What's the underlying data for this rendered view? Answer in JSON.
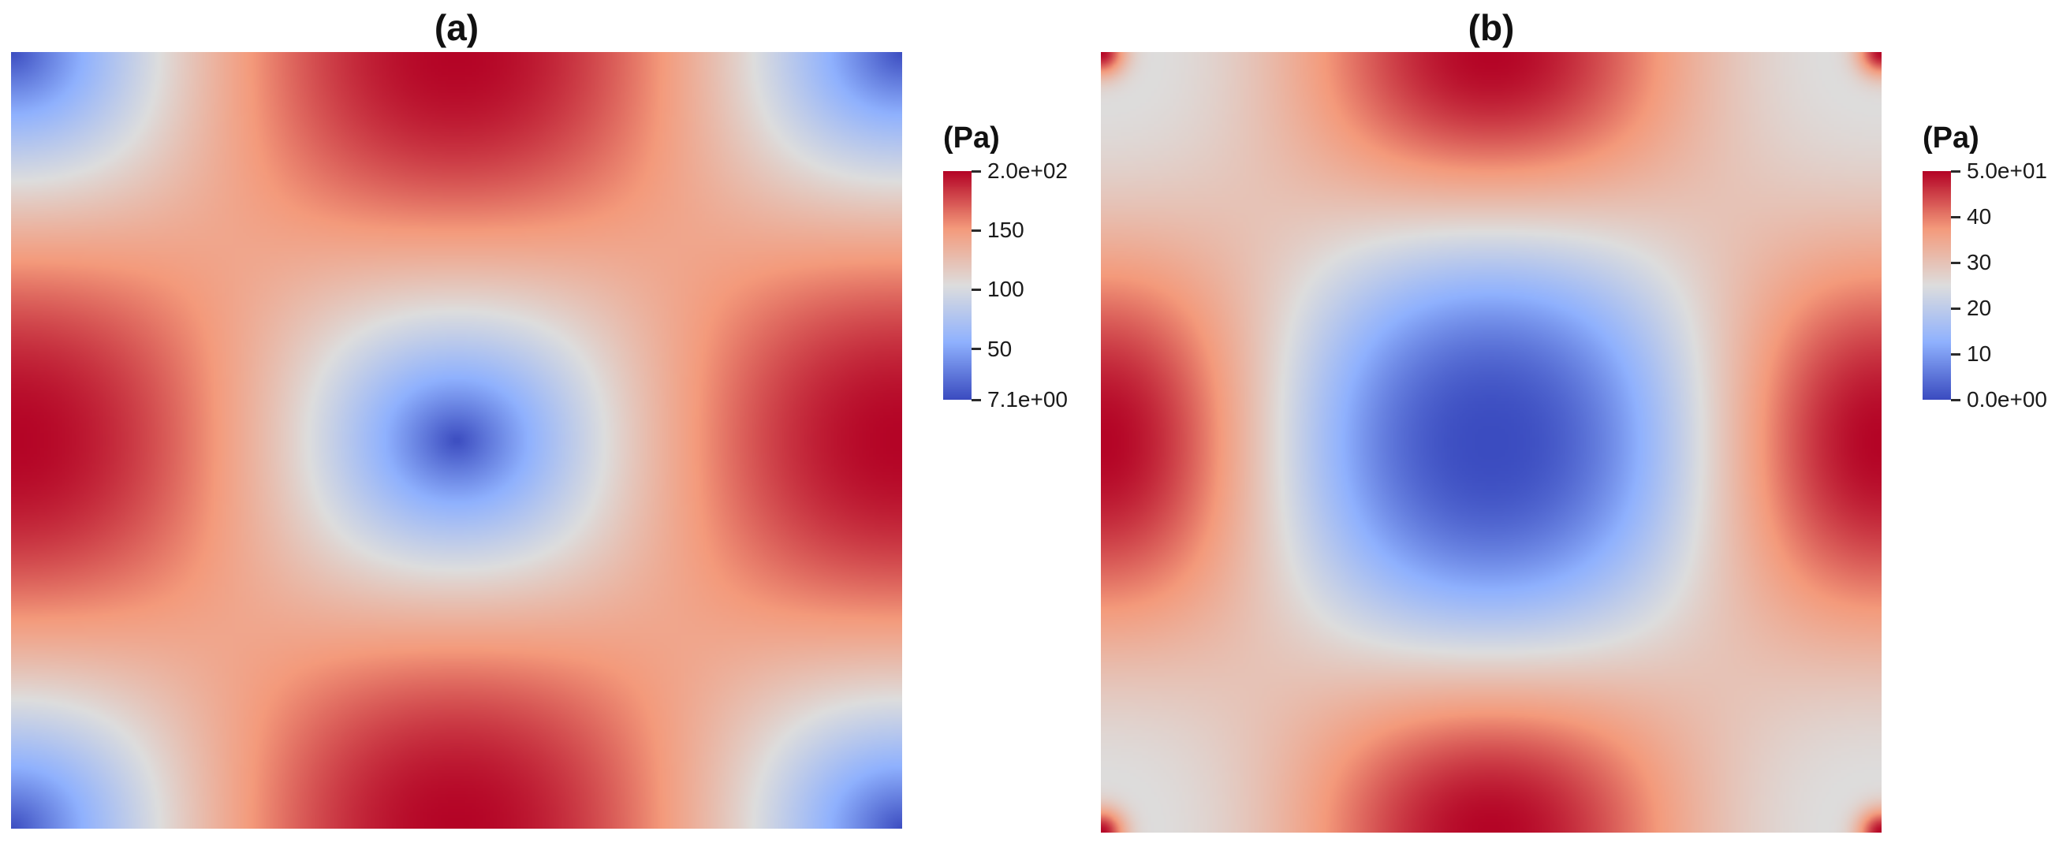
{
  "figure": {
    "background": "#ffffff"
  },
  "colormap": {
    "name": "cool-to-warm",
    "stops": [
      {
        "t": 0,
        "color": "#3b4cc0"
      },
      {
        "t": 0.25,
        "color": "#8fb1fe"
      },
      {
        "t": 0.5,
        "color": "#dddddd"
      },
      {
        "t": 0.75,
        "color": "#f49a7b"
      },
      {
        "t": 1,
        "color": "#b40426"
      }
    ]
  },
  "panels": [
    {
      "label": "(a)",
      "colorbar": {
        "title": "(Pa)",
        "min": 7.1,
        "max": 200,
        "ticks": [
          {
            "value": 200,
            "label": "2.0e+02"
          },
          {
            "value": 150,
            "label": "150"
          },
          {
            "value": 100,
            "label": "100"
          },
          {
            "value": 50,
            "label": "50"
          },
          {
            "value": 7.1,
            "label": "7.1e+00"
          }
        ]
      },
      "field": {
        "model": "edge-high",
        "min": 7.1,
        "max": 200,
        "exponent": 0.5
      }
    },
    {
      "label": "(b)",
      "colorbar": {
        "title": "(Pa)",
        "min": 0,
        "max": 50,
        "ticks": [
          {
            "value": 50,
            "label": "5.0e+01"
          },
          {
            "value": 40,
            "label": "40"
          },
          {
            "value": 30,
            "label": "30"
          },
          {
            "value": 20,
            "label": "20"
          },
          {
            "value": 10,
            "label": "10"
          },
          {
            "value": 0,
            "label": "0.0e+00"
          }
        ]
      },
      "field": {
        "model": "midedge-lobes",
        "min": 0,
        "max": 50,
        "exponent": 1.2,
        "corner_base": 25,
        "corner_spike": 25,
        "spike_radius": 0.03
      }
    }
  ],
  "chart_data": [
    {
      "type": "heatmap",
      "title": "(a)",
      "units": "Pa",
      "colorbar_label": "(Pa)",
      "colormap": "cool-to-warm diverging (blue - gray - red)",
      "value_min": 7.1,
      "value_max": 200,
      "colorbar_ticks": [
        "2.0e+02",
        "150",
        "100",
        "50",
        "7.1e+00"
      ],
      "x": [
        0,
        0.125,
        0.25,
        0.375,
        0.5,
        0.625,
        0.75,
        0.875,
        1
      ],
      "y": [
        0,
        0.125,
        0.25,
        0.375,
        0.5,
        0.625,
        0.75,
        0.875,
        1
      ],
      "values": [
        [
          7.1,
          80.9,
          143.5,
          185.3,
          200,
          185.3,
          143.5,
          80.9,
          7.1
        ],
        [
          80.9,
          103.5,
          143.5,
          174.2,
          185.3,
          174.2,
          143.5,
          103.5,
          80.9
        ],
        [
          143.5,
          143.5,
          143.5,
          143.5,
          143.5,
          143.5,
          143.5,
          143.5,
          143.5
        ],
        [
          185.3,
          174.2,
          143.5,
          103.5,
          80.9,
          103.5,
          143.5,
          174.2,
          185.3
        ],
        [
          200,
          185.3,
          143.5,
          80.9,
          7.1,
          80.9,
          143.5,
          185.3,
          200
        ],
        [
          185.3,
          174.2,
          143.5,
          103.5,
          80.9,
          103.5,
          143.5,
          174.2,
          185.3
        ],
        [
          143.5,
          143.5,
          143.5,
          143.5,
          143.5,
          143.5,
          143.5,
          143.5,
          143.5
        ],
        [
          80.9,
          103.5,
          143.5,
          174.2,
          185.3,
          174.2,
          143.5,
          103.5,
          80.9
        ],
        [
          7.1,
          80.9,
          143.5,
          185.3,
          200,
          185.3,
          143.5,
          80.9,
          7.1
        ]
      ],
      "description": "Pressure field on a unit square: minimum (deep blue, 7.1 Pa) at the center and in tiny spots at the four corners; maximum (deep red, 200 Pa) along the edges, strongest at the midpoint of each edge; gray diverging transition between center and edge bands."
    },
    {
      "type": "heatmap",
      "title": "(b)",
      "units": "Pa",
      "colorbar_label": "(Pa)",
      "colormap": "cool-to-warm diverging (blue - gray - red)",
      "value_min": 0,
      "value_max": 50,
      "colorbar_ticks": [
        "5.0e+01",
        "40",
        "30",
        "20",
        "10",
        "0.0e+00"
      ],
      "x": [
        0,
        0.125,
        0.25,
        0.375,
        0.5,
        0.625,
        0.75,
        0.875,
        1
      ],
      "y": [
        0,
        0.125,
        0.25,
        0.375,
        0.5,
        0.625,
        0.75,
        0.875,
        1
      ],
      "values": [
        [
          50,
          26.3,
          34.3,
          39.1,
          50,
          39.1,
          34.3,
          26.3,
          50
        ],
        [
          26.3,
          27.7,
          32.4,
          38.5,
          41.4,
          38.5,
          32.4,
          27.7,
          26.3
        ],
        [
          34.3,
          32.4,
          28,
          23.6,
          21.8,
          23.6,
          28,
          32.4,
          34.3
        ],
        [
          45,
          38.5,
          23.6,
          10,
          5,
          10,
          23.6,
          38.5,
          45
        ],
        [
          50,
          41.4,
          21.8,
          5,
          0,
          5,
          21.8,
          41.4,
          50
        ],
        [
          45,
          38.5,
          23.6,
          10,
          5,
          10,
          23.6,
          38.5,
          45
        ],
        [
          34.3,
          32.4,
          28,
          23.6,
          21.8,
          23.6,
          28,
          32.4,
          34.3
        ],
        [
          26.3,
          27.7,
          32.4,
          38.5,
          41.4,
          38.5,
          32.4,
          27.7,
          26.3
        ],
        [
          50,
          26.3,
          34.3,
          39.1,
          50,
          39.1,
          34.3,
          26.3,
          50
        ]
      ],
      "description": "Pressure field on a unit square: minimum (deep blue, 0 Pa) in a large square-ish central region; maximum (deep red, 50 Pa) in lobes at the midpoint of each edge; grayish corner regions with a tiny red spot at each exact corner."
    }
  ]
}
